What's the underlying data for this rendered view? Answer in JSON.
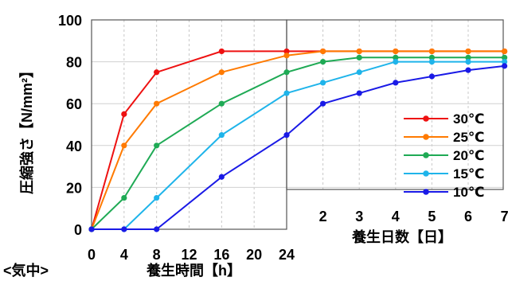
{
  "chart_data": {
    "type": "line",
    "title": "",
    "ylabel": "圧縮強さ【N/mm²】",
    "ylim": [
      0,
      100
    ],
    "y_ticks": [
      "0",
      "20",
      "40",
      "60",
      "80",
      "100"
    ],
    "grid": true,
    "legend_position": "right",
    "panels": [
      {
        "label": "<気中>",
        "xlabel": "養生時間【h】",
        "x_ticks": [
          "0",
          "4",
          "8",
          "12",
          "16",
          "20",
          "24"
        ],
        "xlim": [
          0,
          24
        ]
      },
      {
        "xlabel": "養生日数【日】",
        "x_ticks": [
          "2",
          "3",
          "4",
          "5",
          "6",
          "7"
        ],
        "xlim": [
          1,
          7
        ]
      }
    ],
    "series": [
      {
        "name": "30℃",
        "color": "#ee1111",
        "hours": [
          [
            0,
            0
          ],
          [
            4,
            55
          ],
          [
            8,
            75
          ],
          [
            16,
            85
          ],
          [
            24,
            85
          ]
        ],
        "days": [
          [
            2,
            85
          ],
          [
            3,
            85
          ],
          [
            4,
            85
          ],
          [
            5,
            85
          ],
          [
            6,
            85
          ],
          [
            7,
            85
          ]
        ]
      },
      {
        "name": "25℃",
        "color": "#ff7a00",
        "hours": [
          [
            0,
            0
          ],
          [
            4,
            40
          ],
          [
            8,
            60
          ],
          [
            16,
            75
          ],
          [
            24,
            83
          ]
        ],
        "days": [
          [
            2,
            85
          ],
          [
            3,
            85
          ],
          [
            4,
            85
          ],
          [
            5,
            85
          ],
          [
            6,
            85
          ],
          [
            7,
            85
          ]
        ]
      },
      {
        "name": "20℃",
        "color": "#1faa55",
        "hours": [
          [
            0,
            0
          ],
          [
            4,
            15
          ],
          [
            8,
            40
          ],
          [
            16,
            60
          ],
          [
            24,
            75
          ]
        ],
        "days": [
          [
            2,
            80
          ],
          [
            3,
            82
          ],
          [
            4,
            82
          ],
          [
            5,
            82
          ],
          [
            6,
            82
          ],
          [
            7,
            82
          ]
        ]
      },
      {
        "name": "15℃",
        "color": "#1fb4ea",
        "hours": [
          [
            0,
            0
          ],
          [
            4,
            0
          ],
          [
            8,
            15
          ],
          [
            16,
            45
          ],
          [
            24,
            65
          ]
        ],
        "days": [
          [
            2,
            70
          ],
          [
            3,
            75
          ],
          [
            4,
            80
          ],
          [
            5,
            80
          ],
          [
            6,
            80
          ],
          [
            7,
            80
          ]
        ]
      },
      {
        "name": "10℃",
        "color": "#1a1ae6",
        "hours": [
          [
            0,
            0
          ],
          [
            4,
            0
          ],
          [
            8,
            0
          ],
          [
            16,
            25
          ],
          [
            24,
            45
          ]
        ],
        "days": [
          [
            2,
            60
          ],
          [
            3,
            65
          ],
          [
            4,
            70
          ],
          [
            5,
            73
          ],
          [
            6,
            76
          ],
          [
            7,
            78
          ]
        ]
      }
    ]
  }
}
